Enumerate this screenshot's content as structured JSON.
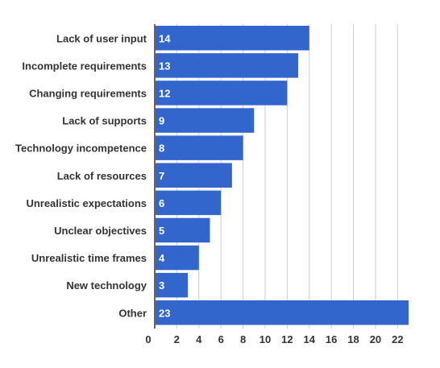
{
  "chart_data": {
    "type": "bar",
    "orientation": "horizontal",
    "categories": [
      "Lack of user input",
      "Incomplete requirements",
      "Changing requirements",
      "Lack of supports",
      "Technology incompetence",
      "Lack of resources",
      "Unrealistic expectations",
      "Unclear objectives",
      "Unrealistic time frames",
      "New technology",
      "Other"
    ],
    "values": [
      14,
      13,
      12,
      9,
      8,
      7,
      6,
      5,
      4,
      3,
      23
    ],
    "data_labels": [
      "14",
      "13",
      "12",
      "9",
      "8",
      "7",
      "6",
      "5",
      "4",
      "3",
      "23"
    ],
    "xlim": [
      0,
      23.8
    ],
    "x_ticks": [
      0,
      2,
      4,
      6,
      8,
      10,
      12,
      14,
      16,
      18,
      20,
      22
    ],
    "x_tick_labels": [
      "0",
      "2",
      "4",
      "6",
      "8",
      "10",
      "12",
      "14",
      "16",
      "18",
      "20",
      "22"
    ],
    "grid": true,
    "bar_color": "#3366cc",
    "label_color": "#ffffff",
    "axis_color": "#333333",
    "grid_color": "#cccccc",
    "title": "",
    "xlabel": "",
    "ylabel": ""
  }
}
